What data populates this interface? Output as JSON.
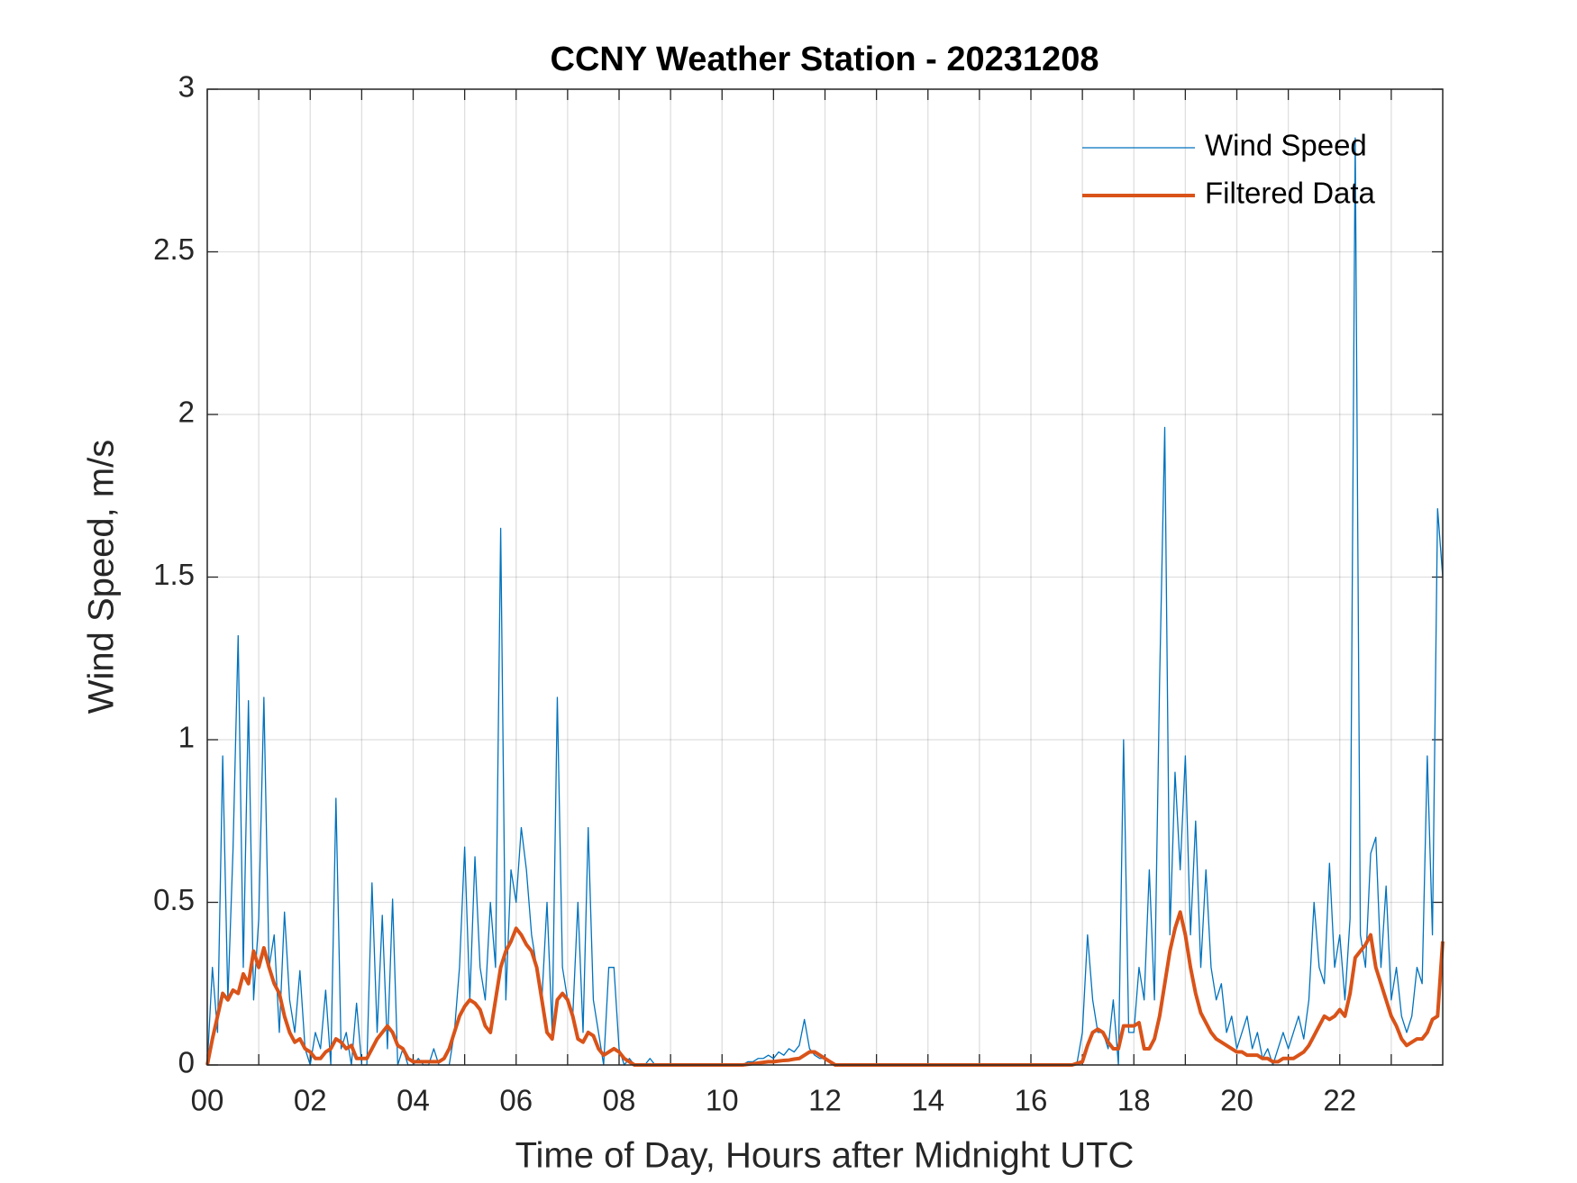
{
  "chart_data": {
    "type": "line",
    "title": "CCNY Weather Station - 20231208",
    "xlabel": "Time of Day, Hours after Midnight UTC",
    "ylabel": "Wind Speed, m/s",
    "xlim": [
      0,
      24
    ],
    "ylim": [
      0,
      3
    ],
    "xticks": [
      {
        "value": 0,
        "label": "00"
      },
      {
        "value": 2,
        "label": "02"
      },
      {
        "value": 4,
        "label": "04"
      },
      {
        "value": 6,
        "label": "06"
      },
      {
        "value": 8,
        "label": "08"
      },
      {
        "value": 10,
        "label": "10"
      },
      {
        "value": 12,
        "label": "12"
      },
      {
        "value": 14,
        "label": "14"
      },
      {
        "value": 16,
        "label": "16"
      },
      {
        "value": 18,
        "label": "18"
      },
      {
        "value": 20,
        "label": "20"
      },
      {
        "value": 22,
        "label": "22"
      }
    ],
    "xminorticks": [
      1,
      3,
      5,
      7,
      9,
      11,
      13,
      15,
      17,
      19,
      21,
      23
    ],
    "yticks": [
      0,
      0.5,
      1,
      1.5,
      2,
      2.5,
      3
    ],
    "grid": true,
    "legend": "northeast",
    "x": [
      0,
      0.1,
      0.2,
      0.3,
      0.4,
      0.5,
      0.6,
      0.7,
      0.8,
      0.9,
      1,
      1.1,
      1.2,
      1.3,
      1.4,
      1.5,
      1.6,
      1.7,
      1.8,
      1.9,
      2,
      2.1,
      2.2,
      2.3,
      2.4,
      2.5,
      2.6,
      2.7,
      2.8,
      2.9,
      3,
      3.1,
      3.2,
      3.3,
      3.4,
      3.5,
      3.6,
      3.7,
      3.8,
      3.9,
      4,
      4.1,
      4.2,
      4.3,
      4.4,
      4.5,
      4.6,
      4.7,
      4.8,
      4.9,
      5,
      5.1,
      5.2,
      5.3,
      5.4,
      5.5,
      5.6,
      5.7,
      5.8,
      5.9,
      6,
      6.1,
      6.2,
      6.3,
      6.4,
      6.5,
      6.6,
      6.7,
      6.8,
      6.9,
      7,
      7.1,
      7.2,
      7.3,
      7.4,
      7.5,
      7.6,
      7.7,
      7.8,
      7.9,
      8,
      8.1,
      8.2,
      8.3,
      8.4,
      8.5,
      8.6,
      8.7,
      8.8,
      8.9,
      9,
      9.1,
      9.2,
      9.3,
      9.4,
      9.5,
      9.6,
      9.7,
      9.8,
      9.9,
      10,
      10.1,
      10.2,
      10.3,
      10.4,
      10.5,
      10.6,
      10.7,
      10.8,
      10.9,
      11,
      11.1,
      11.2,
      11.3,
      11.4,
      11.5,
      11.6,
      11.7,
      11.8,
      11.9,
      12,
      12.1,
      12.2,
      12.3,
      12.4,
      12.5,
      12.6,
      12.7,
      12.8,
      12.9,
      13,
      13.1,
      13.2,
      13.3,
      13.4,
      13.5,
      13.6,
      13.7,
      13.8,
      13.9,
      14,
      14.1,
      14.2,
      14.3,
      14.4,
      14.5,
      14.6,
      14.7,
      14.8,
      14.9,
      15,
      15.1,
      15.2,
      15.3,
      15.4,
      15.5,
      15.6,
      15.7,
      15.8,
      15.9,
      16,
      16.1,
      16.2,
      16.3,
      16.4,
      16.5,
      16.6,
      16.7,
      16.8,
      16.9,
      17,
      17.1,
      17.2,
      17.3,
      17.4,
      17.5,
      17.6,
      17.7,
      17.8,
      17.9,
      18,
      18.1,
      18.2,
      18.3,
      18.4,
      18.5,
      18.6,
      18.7,
      18.8,
      18.9,
      19,
      19.1,
      19.2,
      19.3,
      19.4,
      19.5,
      19.6,
      19.7,
      19.8,
      19.9,
      20,
      20.1,
      20.2,
      20.3,
      20.4,
      20.5,
      20.6,
      20.7,
      20.8,
      20.9,
      21,
      21.1,
      21.2,
      21.3,
      21.4,
      21.5,
      21.6,
      21.7,
      21.8,
      21.9,
      22,
      22.1,
      22.2,
      22.3,
      22.4,
      22.5,
      22.6,
      22.7,
      22.8,
      22.9,
      23,
      23.1,
      23.2,
      23.3,
      23.4,
      23.5,
      23.6,
      23.7,
      23.8,
      23.9,
      24
    ],
    "series": [
      {
        "name": "Wind Speed",
        "color": "#0072bd",
        "width": 1.3,
        "values": [
          0,
          0.3,
          0.1,
          0.95,
          0.2,
          0.66,
          1.32,
          0.3,
          1.12,
          0.2,
          0.45,
          1.13,
          0.3,
          0.4,
          0.1,
          0.47,
          0.2,
          0.1,
          0.29,
          0.05,
          0,
          0.1,
          0.05,
          0.23,
          0,
          0.82,
          0.05,
          0.1,
          0,
          0.19,
          0,
          0,
          0.56,
          0.1,
          0.46,
          0.05,
          0.51,
          0,
          0.05,
          0,
          0,
          0.02,
          0,
          0,
          0.05,
          0,
          0,
          0,
          0.1,
          0.3,
          0.67,
          0.2,
          0.64,
          0.3,
          0.2,
          0.5,
          0.3,
          1.65,
          0.2,
          0.6,
          0.5,
          0.73,
          0.6,
          0.4,
          0.3,
          0.2,
          0.5,
          0.1,
          1.13,
          0.3,
          0.2,
          0.15,
          0.5,
          0.1,
          0.73,
          0.2,
          0.1,
          0,
          0.3,
          0.3,
          0.05,
          0,
          0.02,
          0,
          0,
          0,
          0.02,
          0,
          0,
          0,
          0,
          0,
          0,
          0,
          0,
          0,
          0,
          0,
          0,
          0,
          0,
          0,
          0,
          0,
          0,
          0.01,
          0.01,
          0.02,
          0.02,
          0.03,
          0.02,
          0.04,
          0.03,
          0.05,
          0.04,
          0.06,
          0.14,
          0.05,
          0.03,
          0.02,
          0.02,
          0.01,
          0,
          0,
          0,
          0,
          0,
          0,
          0,
          0,
          0,
          0,
          0,
          0,
          0,
          0,
          0,
          0,
          0,
          0,
          0,
          0,
          0,
          0,
          0,
          0,
          0,
          0,
          0,
          0,
          0,
          0,
          0,
          0,
          0,
          0,
          0,
          0,
          0,
          0,
          0,
          0,
          0,
          0,
          0,
          0,
          0,
          0,
          0,
          0.01,
          0.1,
          0.4,
          0.2,
          0.1,
          0.1,
          0.05,
          0.2,
          0,
          1,
          0.1,
          0.1,
          0.3,
          0.2,
          0.6,
          0.2,
          1.18,
          1.96,
          0.4,
          0.9,
          0.6,
          0.95,
          0.4,
          0.75,
          0.3,
          0.6,
          0.3,
          0.2,
          0.25,
          0.1,
          0.15,
          0.05,
          0.1,
          0.15,
          0.05,
          0.1,
          0.02,
          0.05,
          0,
          0.05,
          0.1,
          0.05,
          0.1,
          0.15,
          0.08,
          0.2,
          0.5,
          0.3,
          0.25,
          0.62,
          0.3,
          0.4,
          0.2,
          0.45,
          2.85,
          0.4,
          0.3,
          0.65,
          0.7,
          0.3,
          0.55,
          0.2,
          0.3,
          0.15,
          0.1,
          0.15,
          0.3,
          0.25,
          0.95,
          0.4,
          1.71,
          1.5
        ]
      },
      {
        "name": "Filtered Data",
        "color": "#d95319",
        "width": 4,
        "values": [
          0,
          0.08,
          0.15,
          0.22,
          0.2,
          0.23,
          0.22,
          0.28,
          0.25,
          0.35,
          0.3,
          0.36,
          0.3,
          0.25,
          0.22,
          0.15,
          0.1,
          0.07,
          0.08,
          0.05,
          0.04,
          0.02,
          0.02,
          0.04,
          0.05,
          0.08,
          0.07,
          0.05,
          0.06,
          0.02,
          0.02,
          0.02,
          0.05,
          0.08,
          0.1,
          0.12,
          0.1,
          0.06,
          0.05,
          0.02,
          0.01,
          0.01,
          0.01,
          0.01,
          0.01,
          0.01,
          0.02,
          0.05,
          0.1,
          0.15,
          0.18,
          0.2,
          0.19,
          0.17,
          0.12,
          0.1,
          0.2,
          0.3,
          0.35,
          0.38,
          0.42,
          0.4,
          0.37,
          0.35,
          0.3,
          0.2,
          0.1,
          0.08,
          0.2,
          0.22,
          0.2,
          0.15,
          0.08,
          0.07,
          0.1,
          0.09,
          0.05,
          0.03,
          0.04,
          0.05,
          0.04,
          0.02,
          0.01,
          0,
          0,
          0,
          0,
          0,
          0,
          0,
          0,
          0,
          0,
          0,
          0,
          0,
          0,
          0,
          0,
          0,
          0,
          0,
          0,
          0,
          0,
          0.002,
          0.004,
          0.006,
          0.008,
          0.01,
          0.01,
          0.012,
          0.014,
          0.015,
          0.018,
          0.02,
          0.03,
          0.04,
          0.04,
          0.03,
          0.02,
          0.01,
          0,
          0,
          0,
          0,
          0,
          0,
          0,
          0,
          0,
          0,
          0,
          0,
          0,
          0,
          0,
          0,
          0,
          0,
          0,
          0,
          0,
          0,
          0,
          0,
          0,
          0,
          0,
          0,
          0,
          0,
          0,
          0,
          0,
          0,
          0,
          0,
          0,
          0,
          0,
          0,
          0,
          0,
          0,
          0,
          0,
          0,
          0,
          0.005,
          0.01,
          0.06,
          0.1,
          0.11,
          0.1,
          0.07,
          0.05,
          0.05,
          0.12,
          0.12,
          0.12,
          0.13,
          0.05,
          0.05,
          0.08,
          0.15,
          0.25,
          0.35,
          0.42,
          0.47,
          0.4,
          0.3,
          0.22,
          0.16,
          0.13,
          0.1,
          0.08,
          0.07,
          0.06,
          0.05,
          0.04,
          0.04,
          0.03,
          0.03,
          0.03,
          0.02,
          0.02,
          0.01,
          0.01,
          0.02,
          0.02,
          0.02,
          0.03,
          0.04,
          0.06,
          0.09,
          0.12,
          0.15,
          0.14,
          0.15,
          0.17,
          0.15,
          0.22,
          0.33,
          0.35,
          0.37,
          0.4,
          0.3,
          0.25,
          0.2,
          0.15,
          0.12,
          0.08,
          0.06,
          0.07,
          0.08,
          0.08,
          0.1,
          0.14,
          0.15,
          0.38
        ]
      }
    ]
  }
}
